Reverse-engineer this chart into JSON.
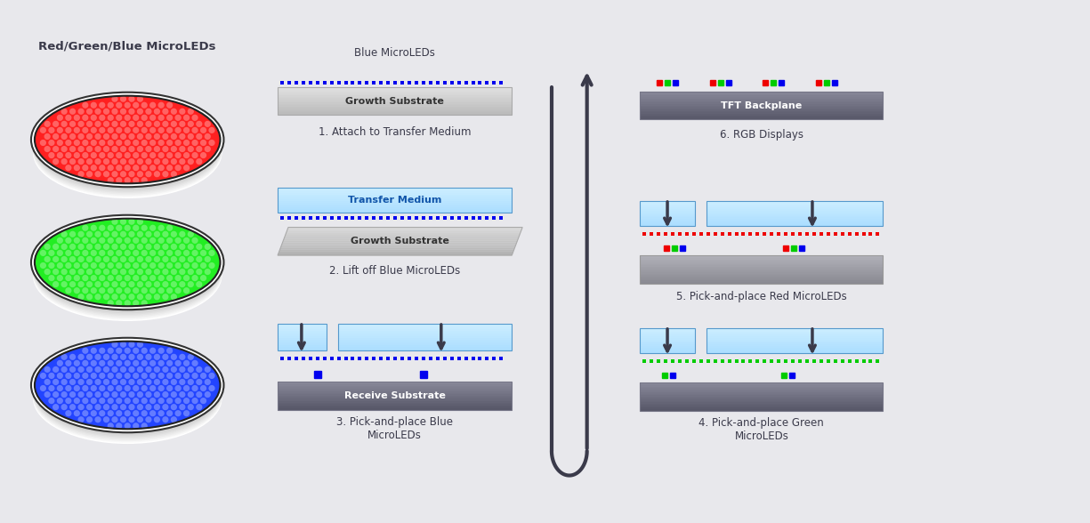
{
  "bg_color": "#e8e8ec",
  "text_color": "#3a3a4a",
  "title_left": "Red/Green/Blue MicroLEDs",
  "wafer_colors": [
    "#ff2020",
    "#22ee22",
    "#2244ff"
  ],
  "step_labels": [
    "1. Attach to Transfer Medium",
    "2. Lift off Blue MicroLEDs",
    "3. Pick-and-place Blue\nMicroLEDs",
    "4. Pick-and-place Green\nMicroLEDs",
    "5. Pick-and-place Red MicroLEDs",
    "6. RGB Displays"
  ],
  "blue_led_label": "Blue MicroLEDs",
  "transfer_medium_label": "Transfer Medium",
  "growth_substrate_label": "Growth Substrate",
  "receive_substrate_label": "Receive Substrate",
  "tft_backplane_label": "TFT Backplane",
  "arrow_color": "#3a3a4a",
  "dot_blue": "#0000ee",
  "dot_red": "#ee0000",
  "dot_green": "#00cc00"
}
